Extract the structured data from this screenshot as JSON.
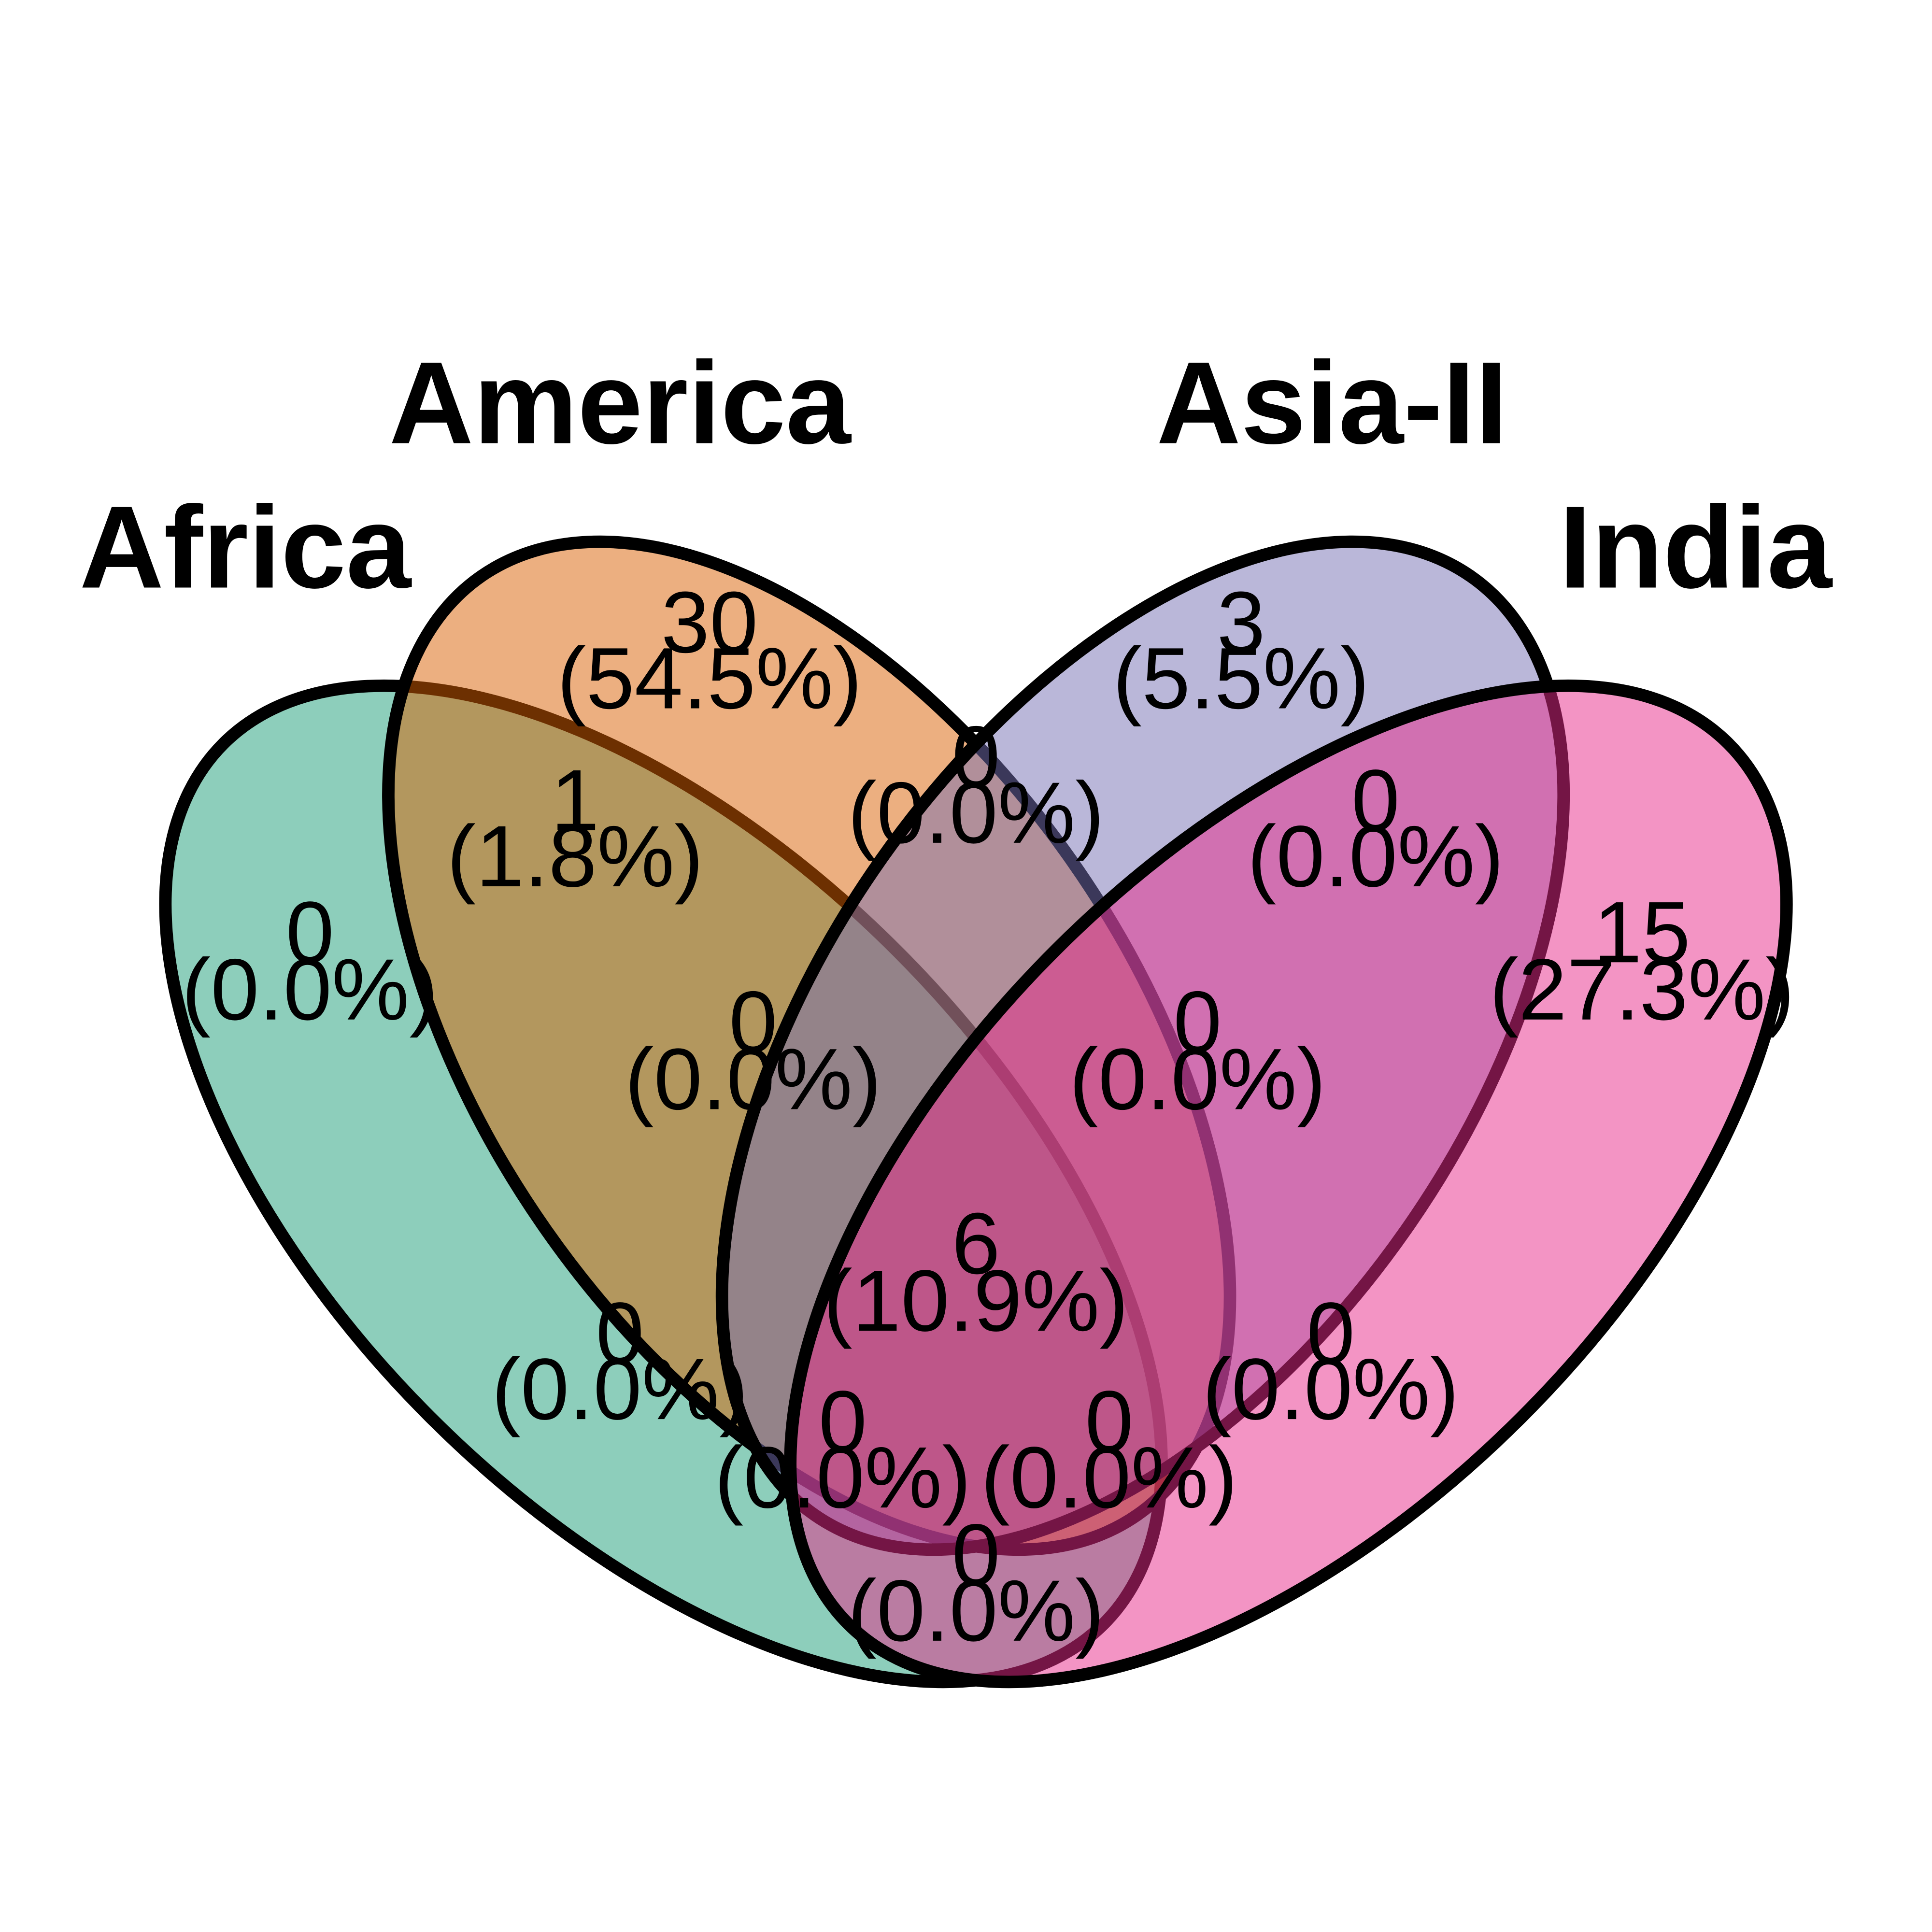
{
  "sets": [
    {
      "id": "africa",
      "label": "Africa",
      "color": "#1B9E77"
    },
    {
      "id": "america",
      "label": "America",
      "color": "#D95F02"
    },
    {
      "id": "asia2",
      "label": "Asia-II",
      "color": "#7570B3"
    },
    {
      "id": "india",
      "label": "India",
      "color": "#E7298A"
    }
  ],
  "regions": [
    {
      "id": "r-africa-only",
      "count": "0",
      "pct": "(0.0%)"
    },
    {
      "id": "r-america-only",
      "count": "30",
      "pct": "(54.5%)"
    },
    {
      "id": "r-asia2-only",
      "count": "3",
      "pct": "(5.5%)"
    },
    {
      "id": "r-india-only",
      "count": "15",
      "pct": "(27.3%)"
    },
    {
      "id": "r-africa-america",
      "count": "1",
      "pct": "(1.8%)"
    },
    {
      "id": "r-america-asia2",
      "count": "0",
      "pct": "(0.0%)"
    },
    {
      "id": "r-asia2-india",
      "count": "0",
      "pct": "(0.0%)"
    },
    {
      "id": "r-africa-america-asia2",
      "count": "0",
      "pct": "(0.0%)"
    },
    {
      "id": "r-america-asia2-india",
      "count": "0",
      "pct": "(0.0%)"
    },
    {
      "id": "r-all-four",
      "count": "6",
      "pct": "(10.9%)"
    },
    {
      "id": "r-africa-asia2",
      "count": "0",
      "pct": "(0.0%)"
    },
    {
      "id": "r-america-india",
      "count": "0",
      "pct": "(0.0%)"
    },
    {
      "id": "r-africa-asia2-india",
      "count": "0",
      "pct": "(0.0%)"
    },
    {
      "id": "r-africa-america-india",
      "count": "0",
      "pct": "(0.0%)"
    },
    {
      "id": "r-africa-india",
      "count": "0",
      "pct": "(0.0%)"
    }
  ]
}
